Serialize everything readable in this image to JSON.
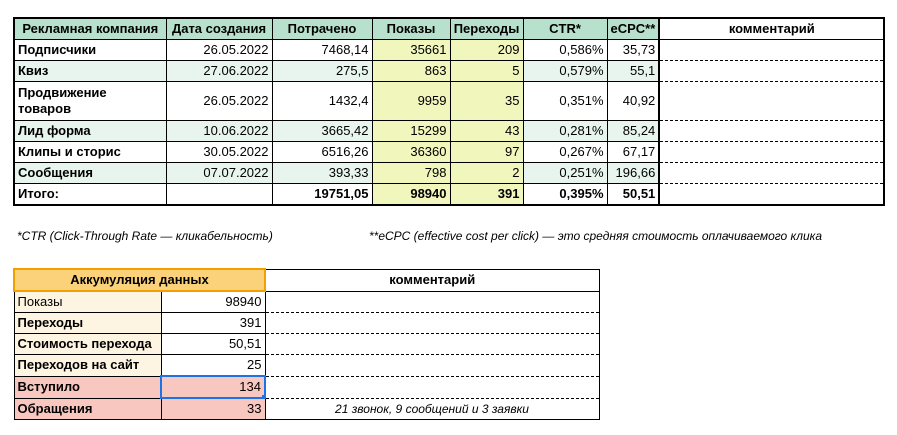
{
  "campaign_table": {
    "headers": {
      "campaign": "Рекламная компания",
      "date": "Дата создания",
      "spent": "Потрачено",
      "impressions": "Показы",
      "clicks": "Переходы",
      "ctr": "CTR*",
      "ecpc": "eCPC**",
      "comment": "комментарий"
    },
    "rows": [
      {
        "name": "Подписчики",
        "date": "26.05.2022",
        "spent": "7468,14",
        "impressions": "35661",
        "clicks": "209",
        "ctr": "0,586%",
        "ecpc": "35,73",
        "comment": ""
      },
      {
        "name": "Квиз",
        "date": "27.06.2022",
        "spent": "275,5",
        "impressions": "863",
        "clicks": "5",
        "ctr": "0,579%",
        "ecpc": "55,1",
        "comment": ""
      },
      {
        "name": "Продвижение товаров",
        "date": "26.05.2022",
        "spent": "1432,4",
        "impressions": "9959",
        "clicks": "35",
        "ctr": "0,351%",
        "ecpc": "40,92",
        "comment": ""
      },
      {
        "name": "Лид форма",
        "date": "10.06.2022",
        "spent": "3665,42",
        "impressions": "15299",
        "clicks": "43",
        "ctr": "0,281%",
        "ecpc": "85,24",
        "comment": ""
      },
      {
        "name": "Клипы и сторис",
        "date": "30.05.2022",
        "spent": "6516,26",
        "impressions": "36360",
        "clicks": "97",
        "ctr": "0,267%",
        "ecpc": "67,17",
        "comment": ""
      },
      {
        "name": "Сообщения",
        "date": "07.07.2022",
        "spent": "393,33",
        "impressions": "798",
        "clicks": "2",
        "ctr": "0,251%",
        "ecpc": "196,66",
        "comment": ""
      }
    ],
    "total": {
      "name": "Итого:",
      "date": "",
      "spent": "19751,05",
      "impressions": "98940",
      "clicks": "391",
      "ctr": "0,395%",
      "ecpc": "50,51",
      "comment": ""
    }
  },
  "notes": {
    "ctr": "*CTR (Click-Through Rate — кликабельность)",
    "ecpc": "**eCPC (effective cost per click) — это средняя стоимость оплачиваемого клика"
  },
  "accumulation_table": {
    "header": "Аккумуляция данных",
    "comment_header": "комментарий",
    "rows": [
      {
        "label": "Показы",
        "value": "98940",
        "comment": ""
      },
      {
        "label": "Переходы",
        "value": "391",
        "comment": ""
      },
      {
        "label": "Стоимость перехода",
        "value": "50,51",
        "comment": ""
      },
      {
        "label": "Переходов на сайт",
        "value": "25",
        "comment": ""
      },
      {
        "label": "Вступило",
        "value": "134",
        "comment": ""
      },
      {
        "label": "Обращения",
        "value": "33",
        "comment": "21 звонок, 9 сообщений и 3 заявки"
      }
    ]
  },
  "colors": {
    "header_green": "#b7e1cd",
    "row_green": "#e8f5ee",
    "yellow": "#f1f6bd",
    "orange": "#fbd17a",
    "cream": "#fdf4e1",
    "pink": "#f7c7c0",
    "selection_blue": "#1a73e8"
  }
}
